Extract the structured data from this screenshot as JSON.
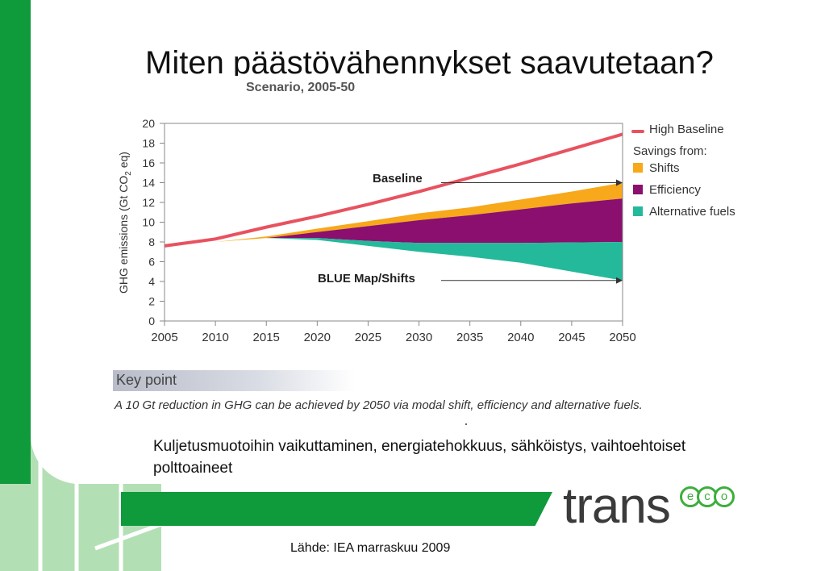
{
  "slide": {
    "title": "Miten päästövähennykset saavutetaan?",
    "subtitle": "Scenario, 2005-50",
    "key_point_label": "Key point",
    "key_point_text": "A 10 Gt reduction in GHG can be achieved by 2050 via modal shift, efficiency and alternative fuels.",
    "body_text": "Kuljetusmuotoihin vaikuttaminen, energiatehokkuus, sähköistys, vaihtoehtoiset polttoaineet",
    "source": "Lähde: IEA marraskuu 2009",
    "logo_main": "trans",
    "logo_eco": [
      "e",
      "c",
      "o"
    ]
  },
  "chart_data": {
    "type": "area",
    "title": "Scenario, 2005-50",
    "xlabel": "",
    "ylabel": "GHG emissions (Gt CO2 eq)",
    "ylabel_main": "GHG emissions (Gt CO",
    "ylabel_sub": "2",
    "ylabel_end": " eq)",
    "xlim": [
      2005,
      2050
    ],
    "ylim": [
      0,
      20
    ],
    "x_ticks": [
      2005,
      2010,
      2015,
      2020,
      2025,
      2030,
      2035,
      2040,
      2045,
      2050
    ],
    "y_ticks": [
      0,
      2,
      4,
      6,
      8,
      10,
      12,
      14,
      16,
      18,
      20
    ],
    "grid": false,
    "x": [
      2005,
      2010,
      2015,
      2020,
      2025,
      2030,
      2035,
      2040,
      2045,
      2050
    ],
    "series": [
      {
        "name": "High Baseline",
        "kind": "line",
        "color": "#e8525f",
        "values": [
          7.6,
          8.3,
          9.5,
          10.6,
          11.8,
          13.1,
          14.5,
          15.9,
          17.4,
          18.9
        ]
      },
      {
        "name": "Shifts",
        "kind": "band",
        "color": "#f7a81b",
        "lower": [
          7.6,
          8.0,
          8.4,
          9.0,
          9.6,
          10.2,
          10.7,
          11.3,
          11.9,
          12.4
        ],
        "upper": [
          7.6,
          8.0,
          8.55,
          9.35,
          10.1,
          10.9,
          11.5,
          12.3,
          13.1,
          14.0
        ]
      },
      {
        "name": "Efficiency",
        "kind": "band",
        "color": "#8a0f6e",
        "lower": [
          7.6,
          8.0,
          8.4,
          8.4,
          8.1,
          7.9,
          7.9,
          7.9,
          7.95,
          8.0
        ],
        "upper": [
          7.6,
          8.0,
          8.4,
          9.0,
          9.6,
          10.2,
          10.7,
          11.3,
          11.9,
          12.4
        ]
      },
      {
        "name": "Alternative fuels",
        "kind": "band",
        "color": "#24b99a",
        "lower": [
          7.6,
          8.0,
          8.4,
          8.2,
          7.6,
          7.0,
          6.5,
          5.9,
          5.0,
          4.1
        ],
        "upper": [
          7.6,
          8.0,
          8.4,
          8.4,
          8.1,
          7.9,
          7.9,
          7.9,
          7.95,
          8.0
        ]
      }
    ],
    "legend": {
      "placement": "right",
      "savings_header": "Savings from:",
      "entries": [
        {
          "label": "High Baseline",
          "color": "#e8525f",
          "kind": "line"
        },
        {
          "label": "Shifts",
          "color": "#f7a81b",
          "kind": "box"
        },
        {
          "label": "Efficiency",
          "color": "#8a0f6e",
          "kind": "box"
        },
        {
          "label": "Alternative fuels",
          "color": "#24b99a",
          "kind": "box"
        }
      ]
    },
    "annotations": [
      {
        "text": "Baseline",
        "arrow_x": 2050,
        "arrow_y": 14.0
      },
      {
        "text": "BLUE Map/Shifts",
        "arrow_x": 2050,
        "arrow_y": 4.1
      }
    ]
  }
}
